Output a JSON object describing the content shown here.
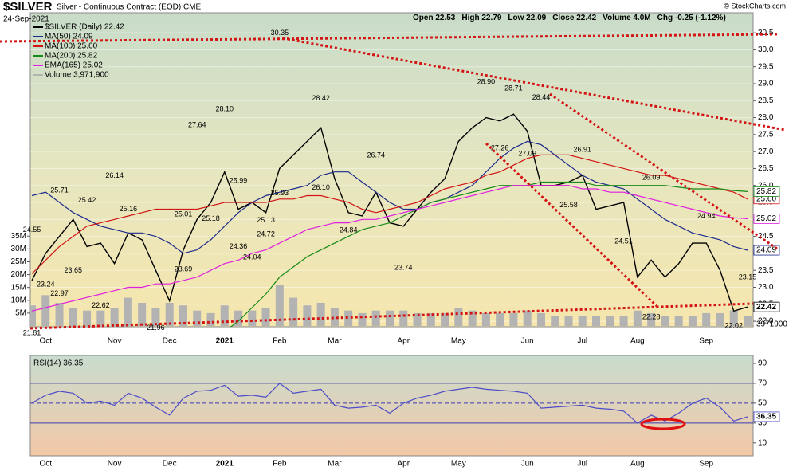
{
  "page": {
    "symbol": "$SILVER",
    "subtitle": "Silver - Continuous Contract (EOD) CME",
    "date": "24-Sep-2021",
    "watermark": "© StockCharts.com",
    "quote": [
      "Open 22.53",
      "High 22.79",
      "Low 22.09",
      "Close 22.42",
      "Volume 4.0M",
      "Chg -0.25 (-1.12%)"
    ]
  },
  "chart_data": [
    {
      "type": "line",
      "categories": [
        null,
        "Oct",
        null,
        null,
        null,
        null,
        "Nov",
        null,
        null,
        null,
        "Dec",
        null,
        null,
        null,
        "2021",
        null,
        null,
        null,
        "Feb",
        null,
        null,
        null,
        "Mar",
        null,
        null,
        null,
        null,
        "Apr",
        null,
        null,
        null,
        "May",
        null,
        null,
        null,
        null,
        "Jun",
        null,
        null,
        null,
        "Jul",
        null,
        null,
        null,
        "Aug",
        null,
        null,
        null,
        null,
        "Sep",
        null,
        null,
        null
      ],
      "ylim": [
        21.86,
        31.09
      ],
      "yticks": [
        {
          "value": 22,
          "label": "22.0"
        },
        22.5,
        {
          "value": 23,
          "label": "23.0"
        },
        23.5,
        {
          "value": 24,
          "label": "24.0"
        },
        24.5,
        {
          "value": 25,
          "label": "25.0"
        },
        25.5,
        {
          "value": 26,
          "label": "26.0"
        },
        26.5,
        {
          "value": 27,
          "label": "27.0"
        },
        27.5,
        {
          "value": 28,
          "label": "28.0"
        },
        28.5,
        {
          "value": 29,
          "label": "29.0"
        },
        29.5,
        {
          "value": 30,
          "label": "30.0"
        },
        30.5
      ],
      "y2lim": [
        0,
        122000000
      ],
      "y2ticks": [
        {
          "value": 5000000,
          "label": "5M"
        },
        {
          "value": 10000000,
          "label": "10M"
        },
        {
          "value": 15000000,
          "label": "15M"
        },
        {
          "value": 20000000,
          "label": "20M"
        },
        {
          "value": 25000000,
          "label": "25M"
        },
        {
          "value": 30000000,
          "label": "30M"
        },
        {
          "value": 35000000,
          "label": "35M"
        }
      ],
      "grid": true,
      "series": [
        {
          "name": "$SILVER (Daily) 22.42",
          "color": "#000000",
          "last_label": "22.42",
          "values": [
            23.2,
            24.0,
            24.5,
            25.0,
            24.2,
            24.3,
            23.7,
            24.6,
            24.4,
            23.5,
            22.6,
            24.1,
            25.0,
            25.5,
            26.4,
            25.3,
            25.5,
            25.2,
            26.5,
            26.9,
            27.3,
            27.7,
            26.2,
            25.2,
            25.1,
            25.8,
            24.9,
            24.8,
            25.3,
            25.8,
            26.2,
            27.3,
            27.7,
            28.0,
            27.9,
            28.1,
            27.6,
            26.0,
            26.0,
            26.1,
            26.3,
            25.3,
            25.4,
            25.5,
            23.3,
            23.8,
            23.3,
            23.7,
            24.3,
            24.3,
            23.5,
            22.3,
            22.42
          ]
        },
        {
          "name": "MA(50) 24.09",
          "color": "#1c2a8c",
          "last_label": "24.09",
          "values": [
            25.7,
            25.8,
            25.5,
            25.2,
            25.0,
            24.8,
            24.7,
            24.6,
            24.6,
            24.5,
            24.3,
            24.0,
            24.1,
            24.4,
            24.8,
            25.2,
            25.5,
            25.7,
            25.8,
            25.9,
            26.0,
            26.3,
            26.4,
            26.4,
            26.1,
            25.8,
            25.5,
            25.3,
            25.3,
            25.5,
            25.6,
            25.8,
            26.0,
            26.4,
            26.8,
            27.1,
            27.3,
            27.2,
            26.9,
            26.6,
            26.3,
            26.1,
            26.0,
            25.9,
            25.6,
            25.3,
            25.0,
            24.8,
            24.6,
            24.5,
            24.4,
            24.2,
            24.09
          ]
        },
        {
          "name": "MA(100) 25.60",
          "color": "#d21414",
          "last_label": "25.60",
          "values": [
            23.4,
            23.8,
            24.2,
            24.5,
            24.8,
            24.9,
            25.0,
            25.1,
            25.2,
            25.3,
            25.3,
            25.3,
            25.3,
            25.4,
            25.5,
            25.5,
            25.5,
            25.5,
            25.6,
            25.6,
            25.7,
            25.7,
            25.6,
            25.5,
            25.3,
            25.2,
            25.3,
            25.4,
            25.5,
            25.7,
            25.9,
            26.0,
            26.1,
            26.3,
            26.4,
            26.6,
            26.8,
            26.9,
            26.9,
            26.9,
            26.8,
            26.7,
            26.6,
            26.5,
            26.4,
            26.3,
            26.3,
            26.2,
            26.1,
            26.0,
            25.9,
            25.8,
            25.6
          ]
        },
        {
          "name": "MA(200) 25.82",
          "color": "#178a17",
          "last_label": "25.82",
          "values": [
            null,
            null,
            null,
            null,
            null,
            null,
            null,
            null,
            null,
            null,
            null,
            null,
            null,
            null,
            21.7,
            22.0,
            22.4,
            22.8,
            23.3,
            23.6,
            23.9,
            24.1,
            24.3,
            24.5,
            24.7,
            24.8,
            24.9,
            25.1,
            25.3,
            25.5,
            25.6,
            25.7,
            25.8,
            25.9,
            26.0,
            26.0,
            26.0,
            26.1,
            26.1,
            26.1,
            26.1,
            26.0,
            26.0,
            26.0,
            26.0,
            26.0,
            26.0,
            25.95,
            25.9,
            25.9,
            25.9,
            25.85,
            25.82
          ]
        },
        {
          "name": "EMA(165) 25.02",
          "color": "#e020e0",
          "last_label": "25.02",
          "values": [
            22.3,
            22.4,
            22.5,
            22.6,
            22.7,
            22.8,
            22.9,
            23.0,
            23.0,
            23.1,
            23.1,
            23.2,
            23.3,
            23.5,
            23.7,
            23.8,
            24.0,
            24.1,
            24.3,
            24.5,
            24.7,
            24.8,
            24.9,
            24.9,
            25.0,
            25.0,
            25.1,
            25.2,
            25.3,
            25.4,
            25.5,
            25.6,
            25.7,
            25.8,
            25.9,
            26.0,
            26.0,
            26.0,
            26.0,
            26.0,
            25.9,
            25.9,
            25.8,
            25.8,
            25.7,
            25.6,
            25.5,
            25.4,
            25.3,
            25.2,
            25.1,
            25.05,
            25.02
          ]
        },
        {
          "name": "Volume 3,971,900",
          "color": "#b3b3b3",
          "axis": "y2",
          "values": [
            8000000,
            12000000,
            9000000,
            7000000,
            6000000,
            6000000,
            7000000,
            11000000,
            9000000,
            7000000,
            9000000,
            8000000,
            6000000,
            5000000,
            8000000,
            6000000,
            6000000,
            7000000,
            16000000,
            11000000,
            8000000,
            9000000,
            7000000,
            6000000,
            5000000,
            6000000,
            6000000,
            6000000,
            5000000,
            5000000,
            5000000,
            7000000,
            6000000,
            5000000,
            5000000,
            5000000,
            6000000,
            5000000,
            4000000,
            4000000,
            4000000,
            4000000,
            4000000,
            4000000,
            6000000,
            5000000,
            4000000,
            4000000,
            4000000,
            5000000,
            5000000,
            6000000,
            3971900
          ]
        }
      ],
      "annotations": [
        {
          "x": 0,
          "value": 21.81
        },
        {
          "x": 0,
          "value": 24.55
        },
        {
          "x": 1,
          "value": 23.24
        },
        {
          "x": 2,
          "value": 22.97
        },
        {
          "x": 2,
          "value": 25.71
        },
        {
          "x": 4,
          "value": 25.42
        },
        {
          "x": 3,
          "value": 23.65
        },
        {
          "x": 6,
          "value": 26.14
        },
        {
          "x": 5,
          "value": 22.62
        },
        {
          "x": 7,
          "value": 25.16
        },
        {
          "x": 9,
          "value": 21.96
        },
        {
          "x": 11,
          "value": 25.01
        },
        {
          "x": 11,
          "value": 23.69
        },
        {
          "x": 12,
          "value": 27.64
        },
        {
          "x": 13,
          "value": 25.18
        },
        {
          "x": 14,
          "value": 28.1,
          "label": "28.10"
        },
        {
          "x": 15,
          "value": 24.36
        },
        {
          "x": 15,
          "value": 25.99
        },
        {
          "x": 16,
          "value": 24.04
        },
        {
          "x": 17,
          "value": 25.13
        },
        {
          "x": 17,
          "value": 24.72
        },
        {
          "x": 18,
          "value": 30.35
        },
        {
          "x": 18,
          "value": 25.93
        },
        {
          "x": 21,
          "value": 28.42
        },
        {
          "x": 21,
          "value": 26.1,
          "label": "26.10"
        },
        {
          "x": 23,
          "value": 24.84
        },
        {
          "x": 25,
          "value": 26.74
        },
        {
          "x": 27,
          "value": 23.74
        },
        {
          "x": 33,
          "value": 28.9,
          "label": "28.90"
        },
        {
          "x": 34,
          "value": 27.26
        },
        {
          "x": 35,
          "value": 28.71
        },
        {
          "x": 36,
          "value": 27.09
        },
        {
          "x": 37,
          "value": 28.44
        },
        {
          "x": 39,
          "value": 25.58
        },
        {
          "x": 40,
          "value": 26.91
        },
        {
          "x": 43,
          "value": 24.51
        },
        {
          "x": 45,
          "value": 26.09
        },
        {
          "x": 45,
          "value": 22.28
        },
        {
          "x": 49,
          "value": 24.94
        },
        {
          "x": 52,
          "value": 23.15
        },
        {
          "x": 51,
          "value": 22.02
        }
      ]
    },
    {
      "type": "line",
      "title": "RSI(14) 36.35",
      "categories": [
        null,
        "Oct",
        null,
        null,
        null,
        null,
        "Nov",
        null,
        null,
        null,
        "Dec",
        null,
        null,
        null,
        "2021",
        null,
        null,
        null,
        "Feb",
        null,
        null,
        null,
        "Mar",
        null,
        null,
        null,
        null,
        "Apr",
        null,
        null,
        null,
        "May",
        null,
        null,
        null,
        null,
        "Jun",
        null,
        null,
        null,
        "Jul",
        null,
        null,
        null,
        "Aug",
        null,
        null,
        null,
        null,
        "Sep",
        null,
        null,
        null
      ],
      "ylim": [
        -3,
        98
      ],
      "yticks": [
        10,
        30,
        50,
        70,
        90
      ],
      "levels": [
        70,
        50,
        30
      ],
      "series": [
        {
          "name": "RSI(14)",
          "color": "#4b4bc8",
          "values": [
            50,
            58,
            62,
            60,
            50,
            52,
            48,
            60,
            55,
            46,
            38,
            55,
            62,
            63,
            68,
            57,
            58,
            56,
            70,
            60,
            62,
            64,
            48,
            45,
            46,
            48,
            40,
            50,
            55,
            58,
            62,
            64,
            66,
            64,
            63,
            62,
            60,
            45,
            46,
            47,
            48,
            45,
            44,
            42,
            30,
            38,
            32,
            40,
            50,
            55,
            46,
            32,
            36.35
          ]
        }
      ]
    }
  ]
}
